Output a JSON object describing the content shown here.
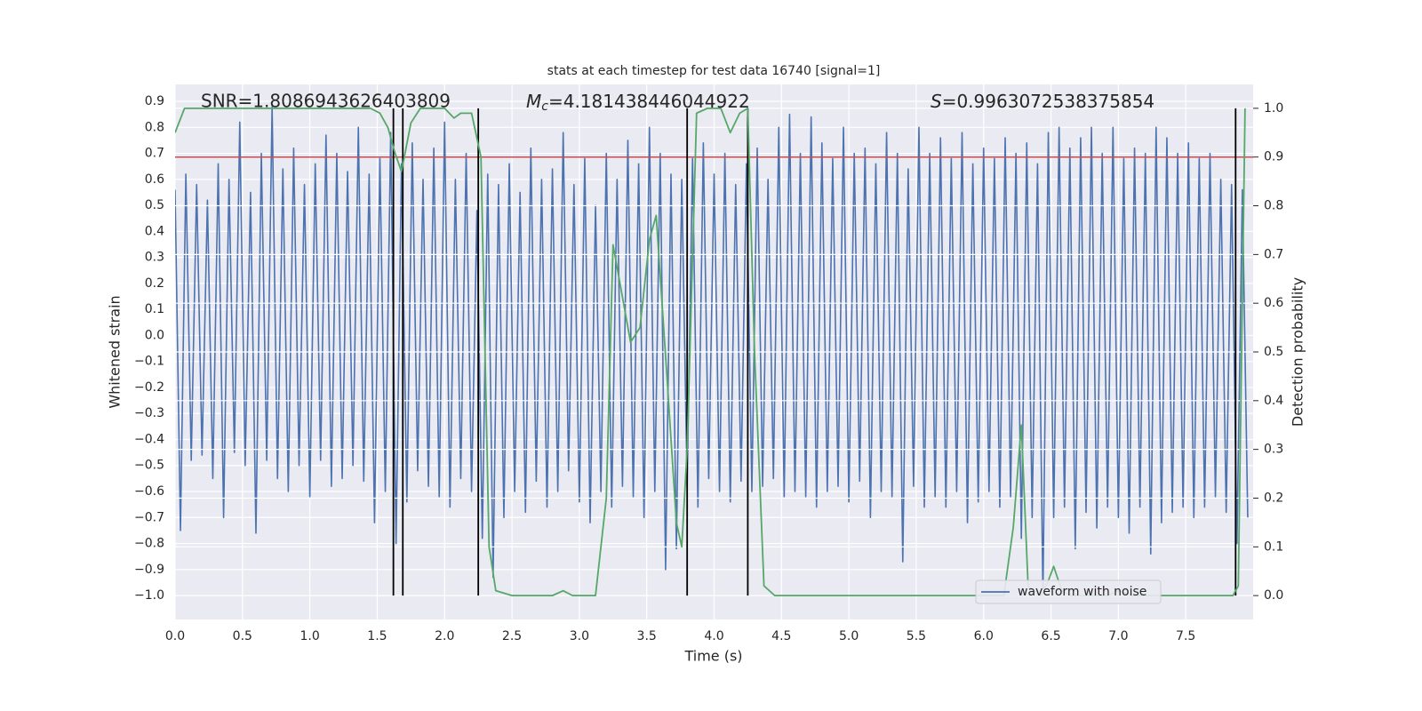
{
  "chart_data": {
    "type": "line",
    "title": "stats at each timestep for test data 16740 [signal=1]",
    "xlabel": "Time (s)",
    "ylabel": "Whitened strain",
    "y2label": "Detection probability",
    "annotations": [
      {
        "text": "SNR=1.8086943626403809"
      },
      {
        "symbol": "M",
        "subscript": "c",
        "text": "=4.181438446044922"
      },
      {
        "symbol": "S",
        "text": "=0.9963072538375854"
      }
    ],
    "xlim": [
      0,
      8.0
    ],
    "ylim": [
      -1.092,
      0.965
    ],
    "y2lim": [
      -0.049,
      1.049
    ],
    "xticks": [
      {
        "value": 0,
        "label": "0.0"
      },
      0.5,
      {
        "value": 1,
        "label": "1.0"
      },
      1.5,
      {
        "value": 2,
        "label": "2.0"
      },
      2.5,
      {
        "value": 3,
        "label": "3.0"
      },
      3.5,
      {
        "value": 4,
        "label": "4.0"
      },
      4.5,
      {
        "value": 5,
        "label": "5.0"
      },
      5.5,
      {
        "value": 6,
        "label": "6.0"
      },
      6.5,
      {
        "value": 7,
        "label": "7.0"
      },
      7.5
    ],
    "yticks": [
      {
        "value": -1,
        "label": "−1.0"
      },
      {
        "value": -0.9,
        "label": "−0.9"
      },
      {
        "value": -0.8,
        "label": "−0.8"
      },
      {
        "value": -0.7,
        "label": "−0.7"
      },
      {
        "value": -0.6,
        "label": "−0.6"
      },
      {
        "value": -0.5,
        "label": "−0.5"
      },
      {
        "value": -0.4,
        "label": "−0.4"
      },
      {
        "value": -0.3,
        "label": "−0.3"
      },
      {
        "value": -0.2,
        "label": "−0.2"
      },
      {
        "value": -0.1,
        "label": "−0.1"
      },
      {
        "value": 0,
        "label": "0.0"
      },
      0.1,
      0.2,
      0.3,
      0.4,
      0.5,
      0.6,
      0.7,
      0.8,
      0.9
    ],
    "y2ticks": [
      {
        "value": 0,
        "label": "0.0"
      },
      0.1,
      0.2,
      0.3,
      0.4,
      0.5,
      0.6,
      0.7,
      0.8,
      0.9,
      {
        "value": 1,
        "label": "1.0"
      }
    ],
    "grid": true,
    "legend": "lower right",
    "series": [
      {
        "name": "waveform with noise",
        "color": "#4c72b0",
        "x": [
          0,
          0.04,
          0.08,
          0.12,
          0.16,
          0.2,
          0.24,
          0.28,
          0.32,
          0.36,
          0.4,
          0.44,
          0.48,
          0.52,
          0.56,
          0.6,
          0.64,
          0.68,
          0.72,
          0.76,
          0.8,
          0.84,
          0.88,
          0.92,
          0.96,
          1,
          1.04,
          1.08,
          1.12,
          1.16,
          1.2,
          1.24,
          1.28,
          1.32,
          1.36,
          1.4,
          1.44,
          1.48,
          1.52,
          1.56,
          1.6,
          1.64,
          1.68,
          1.72,
          1.76,
          1.8,
          1.84,
          1.88,
          1.92,
          1.96,
          2,
          2.04,
          2.08,
          2.12,
          2.16,
          2.2,
          2.24,
          2.28,
          2.32,
          2.36,
          2.4,
          2.44,
          2.48,
          2.52,
          2.56,
          2.6,
          2.64,
          2.68,
          2.72,
          2.76,
          2.8,
          2.84,
          2.88,
          2.92,
          2.96,
          3,
          3.04,
          3.08,
          3.12,
          3.16,
          3.2,
          3.24,
          3.28,
          3.32,
          3.36,
          3.4,
          3.44,
          3.48,
          3.52,
          3.56,
          3.6,
          3.64,
          3.68,
          3.72,
          3.76,
          3.8,
          3.84,
          3.88,
          3.92,
          3.96,
          4,
          4.04,
          4.08,
          4.12,
          4.16,
          4.2,
          4.24,
          4.28,
          4.32,
          4.36,
          4.4,
          4.44,
          4.48,
          4.52,
          4.56,
          4.6,
          4.64,
          4.68,
          4.72,
          4.76,
          4.8,
          4.84,
          4.88,
          4.92,
          4.96,
          5,
          5.04,
          5.08,
          5.12,
          5.16,
          5.2,
          5.24,
          5.28,
          5.32,
          5.36,
          5.4,
          5.44,
          5.48,
          5.52,
          5.56,
          5.6,
          5.64,
          5.68,
          5.72,
          5.76,
          5.8,
          5.84,
          5.88,
          5.92,
          5.96,
          6,
          6.04,
          6.08,
          6.12,
          6.16,
          6.2,
          6.24,
          6.28,
          6.32,
          6.36,
          6.4,
          6.44,
          6.48,
          6.52,
          6.56,
          6.6,
          6.64,
          6.68,
          6.72,
          6.76,
          6.8,
          6.84,
          6.88,
          6.92,
          6.96,
          7,
          7.04,
          7.08,
          7.12,
          7.16,
          7.2,
          7.24,
          7.28,
          7.32,
          7.36,
          7.4,
          7.44,
          7.48,
          7.52,
          7.56,
          7.6,
          7.64,
          7.68,
          7.72,
          7.76,
          7.8,
          7.84,
          7.88,
          7.92,
          7.96
        ],
        "values": [
          0.56,
          -0.75,
          0.62,
          -0.48,
          0.58,
          -0.46,
          0.52,
          -0.55,
          0.66,
          -0.7,
          0.6,
          -0.45,
          0.82,
          -0.5,
          0.55,
          -0.76,
          0.7,
          -0.48,
          0.88,
          -0.55,
          0.64,
          -0.6,
          0.72,
          -0.5,
          0.58,
          -0.62,
          0.66,
          -0.48,
          0.77,
          -0.58,
          0.7,
          -0.55,
          0.63,
          -0.5,
          0.8,
          -0.56,
          0.62,
          -0.72,
          0.68,
          -0.6,
          0.78,
          -0.8,
          0.66,
          -0.64,
          0.74,
          -0.52,
          0.6,
          -0.58,
          0.72,
          -0.62,
          0.82,
          -0.66,
          0.6,
          -0.55,
          0.7,
          -0.6,
          0.48,
          -0.78,
          0.62,
          -0.93,
          0.58,
          -0.7,
          0.66,
          -0.6,
          0.55,
          -0.68,
          0.72,
          -0.56,
          0.6,
          -0.66,
          0.64,
          -0.6,
          0.78,
          -0.52,
          0.58,
          -0.64,
          0.68,
          -0.72,
          0.5,
          -0.6,
          0.7,
          -0.66,
          0.6,
          -0.58,
          0.75,
          -0.62,
          0.66,
          -0.7,
          0.8,
          -0.6,
          0.7,
          -0.9,
          0.62,
          -0.82,
          0.6,
          -0.58,
          0.68,
          -0.66,
          0.74,
          -0.55,
          0.62,
          -0.6,
          0.7,
          -0.64,
          0.58,
          -0.56,
          0.66,
          -0.6,
          0.72,
          -0.58,
          0.6,
          -0.55,
          0.8,
          -0.62,
          0.85,
          -0.6,
          0.7,
          -0.62,
          0.84,
          -0.66,
          0.74,
          -0.6,
          0.68,
          -0.58,
          0.8,
          -0.64,
          0.7,
          -0.56,
          0.72,
          -0.7,
          0.66,
          -0.6,
          0.78,
          -0.62,
          0.7,
          -0.87,
          0.64,
          -0.58,
          0.8,
          -0.66,
          0.7,
          -0.62,
          0.76,
          -0.66,
          0.68,
          -0.6,
          0.78,
          -0.72,
          0.66,
          -0.64,
          0.72,
          -0.6,
          0.68,
          -0.66,
          0.76,
          -0.62,
          0.7,
          -0.78,
          0.74,
          -0.7,
          0.66,
          -1.0,
          0.78,
          -0.7,
          0.8,
          -0.66,
          0.72,
          -0.82,
          0.76,
          -0.68,
          0.8,
          -0.74,
          0.7,
          -0.66,
          0.8,
          -0.7,
          0.68,
          -0.76,
          0.72,
          -0.66,
          0.7,
          -0.84,
          0.8,
          -0.72,
          0.76,
          -0.68,
          0.7,
          -0.66,
          0.74,
          -0.7,
          0.68,
          -0.66,
          0.7,
          -0.62,
          0.6,
          -0.68,
          0.58,
          -0.8,
          0.56,
          -0.7
        ]
      },
      {
        "color": "#55a868",
        "axis": "y2",
        "x": [
          0,
          0.07,
          0.2,
          0.5,
          1.0,
          1.45,
          1.52,
          1.58,
          1.63,
          1.68,
          1.75,
          1.82,
          1.92,
          2.0,
          2.07,
          2.12,
          2.2,
          2.27,
          2.3,
          2.33,
          2.38,
          2.5,
          2.8,
          2.88,
          2.95,
          3.05,
          3.12,
          3.2,
          3.25,
          3.38,
          3.45,
          3.52,
          3.57,
          3.65,
          3.72,
          3.76,
          3.8,
          3.87,
          3.95,
          4.05,
          4.12,
          4.19,
          4.25,
          4.3,
          4.37,
          4.45,
          4.6,
          5.0,
          5.5,
          6.0,
          6.15,
          6.22,
          6.28,
          6.33,
          6.42,
          6.48,
          6.52,
          6.58,
          6.65,
          6.85,
          6.92,
          7.0,
          7.1,
          7.3,
          7.5,
          7.85,
          7.89,
          7.94
        ],
        "values": [
          0.95,
          1.0,
          1.0,
          1.0,
          1.0,
          1.0,
          0.99,
          0.96,
          0.91,
          0.87,
          0.97,
          1.0,
          1.0,
          1.0,
          0.98,
          0.99,
          0.99,
          0.9,
          0.5,
          0.1,
          0.01,
          0.0,
          0.0,
          0.01,
          0.0,
          0.0,
          0.0,
          0.2,
          0.72,
          0.52,
          0.55,
          0.73,
          0.78,
          0.45,
          0.15,
          0.1,
          0.3,
          0.99,
          1.0,
          1.0,
          0.95,
          0.99,
          1.0,
          0.5,
          0.02,
          0.0,
          0.0,
          0.0,
          0.0,
          0.0,
          0.0,
          0.14,
          0.35,
          0.02,
          0.0,
          0.03,
          0.06,
          0.01,
          0.0,
          0.0,
          0.0,
          0.01,
          0.0,
          0.0,
          0.0,
          0.0,
          0.02,
          1.0
        ]
      }
    ],
    "threshold": {
      "value": 0.9,
      "axis": "y2",
      "color": "#c44e52"
    },
    "vlines": {
      "x": [
        1.62,
        1.69,
        2.25,
        3.8,
        4.25,
        7.87
      ],
      "ymin": 0,
      "ymax": 1,
      "axis": "y2",
      "color": "#000000"
    }
  }
}
